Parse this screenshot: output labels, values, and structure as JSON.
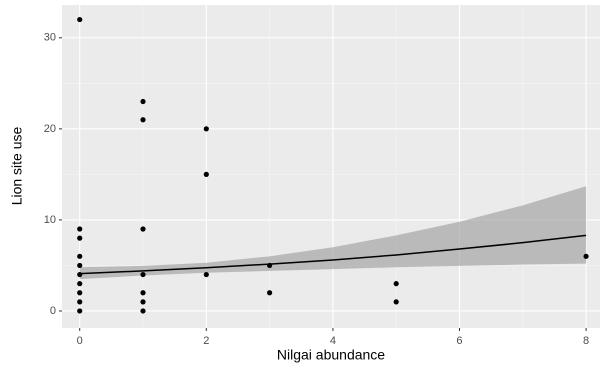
{
  "chart_data": {
    "type": "scatter",
    "xlabel": "Nilgai abundance",
    "ylabel": "Lion site use",
    "xlim": [
      -0.28,
      8.22
    ],
    "ylim": [
      -1.87,
      33.6
    ],
    "xticks": [
      0,
      2,
      4,
      6,
      8
    ],
    "yticks": [
      0,
      10,
      20,
      30
    ],
    "xminor": [
      1,
      3,
      5,
      7
    ],
    "yminor": [
      5,
      15,
      25
    ],
    "grid": true,
    "point_color": "#000000",
    "line_color": "#000000",
    "band_color": "#999999",
    "points": {
      "x": [
        0,
        0,
        0,
        0,
        0,
        0,
        0,
        0,
        0,
        0,
        1,
        1,
        1,
        1,
        1,
        1,
        1,
        2,
        2,
        2,
        3,
        3,
        5,
        5,
        8
      ],
      "y": [
        32,
        9,
        8,
        6,
        5,
        4,
        3,
        2,
        1,
        0,
        23,
        21,
        9,
        4,
        2,
        1,
        0,
        20,
        15,
        4,
        5,
        2,
        3,
        1,
        6
      ]
    },
    "fit": {
      "x": [
        0,
        1,
        2,
        3,
        4,
        5,
        6,
        7,
        8
      ],
      "y": [
        4.1,
        4.4,
        4.75,
        5.15,
        5.6,
        6.15,
        6.8,
        7.5,
        8.3
      ],
      "lower": [
        3.5,
        3.9,
        4.2,
        4.4,
        4.6,
        4.8,
        4.95,
        5.1,
        5.2
      ],
      "upper": [
        4.8,
        4.95,
        5.3,
        6.0,
        7.0,
        8.3,
        9.8,
        11.6,
        13.7
      ]
    }
  }
}
